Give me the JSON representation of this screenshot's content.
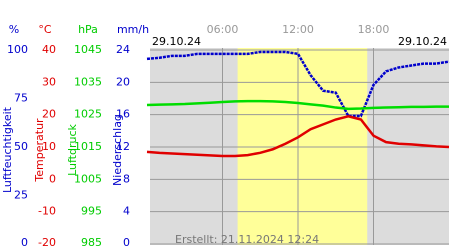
{
  "chart_data": {
    "type": "line",
    "dates": [
      "29.10.24",
      "29.10.24"
    ],
    "footer": "Erstellt: 21.11.2024 12:24",
    "xlim": [
      0,
      24
    ],
    "xticks": [
      {
        "value": 6,
        "label": "06:00"
      },
      {
        "value": 12,
        "label": "12:00"
      },
      {
        "value": 18,
        "label": "18:00"
      }
    ],
    "daylight": [
      7.2,
      17.5
    ],
    "grid": true,
    "axes": [
      {
        "name": "Luftfeuchtigkeit",
        "unit": "%",
        "color": "#0000cc",
        "ylim": [
          0,
          100
        ],
        "yticks": [
          100,
          75,
          50,
          25,
          0
        ]
      },
      {
        "name": "Temperatur",
        "unit": "°C",
        "color": "#e00000",
        "ylim": [
          -20,
          40
        ],
        "yticks": [
          40,
          30,
          20,
          10,
          0,
          -10,
          -20
        ]
      },
      {
        "name": "Luftdruck",
        "unit": "hPa",
        "color": "#00cc00",
        "ylim": [
          985,
          1045
        ],
        "yticks": [
          1045,
          1035,
          1025,
          1015,
          1005,
          995,
          985
        ]
      },
      {
        "name": "Niederschlag",
        "unit": "mm/h",
        "color": "#0000cc",
        "ylim": [
          0,
          24
        ],
        "yticks": [
          24,
          20,
          16,
          12,
          8,
          4,
          0
        ]
      }
    ],
    "x": [
      0,
      1,
      2,
      3,
      4,
      5,
      6,
      7,
      8,
      9,
      10,
      11,
      12,
      13,
      14,
      15,
      16,
      17,
      18,
      19,
      20,
      21,
      22,
      23,
      24
    ],
    "series": [
      {
        "name": "Luftfeuchtigkeit",
        "axis": 0,
        "color": "#0000cc",
        "values": [
          95.4,
          96,
          97,
          97,
          98,
          98,
          98,
          98,
          98,
          99,
          99,
          99,
          98,
          87,
          79,
          78,
          66,
          66,
          82,
          89,
          91,
          92,
          93,
          93,
          94
        ]
      },
      {
        "name": "Temperatur",
        "axis": 1,
        "color": "#e00000",
        "values": [
          8.5,
          8.2,
          8,
          7.8,
          7.6,
          7.4,
          7.2,
          7.2,
          7.5,
          8.2,
          9.3,
          11,
          13,
          15.5,
          17,
          18.5,
          19.5,
          18.5,
          13.5,
          11.5,
          11,
          10.8,
          10.5,
          10.2,
          10
        ]
      },
      {
        "name": "Luftdruck",
        "axis": 2,
        "color": "#00dd00",
        "values": [
          1028,
          1028.1,
          1028.2,
          1028.3,
          1028.5,
          1028.7,
          1028.9,
          1029.1,
          1029.2,
          1029.2,
          1029.1,
          1028.9,
          1028.6,
          1028.2,
          1027.8,
          1027.2,
          1026.8,
          1026.9,
          1027.1,
          1027.2,
          1027.3,
          1027.4,
          1027.4,
          1027.5,
          1027.5
        ]
      }
    ]
  }
}
